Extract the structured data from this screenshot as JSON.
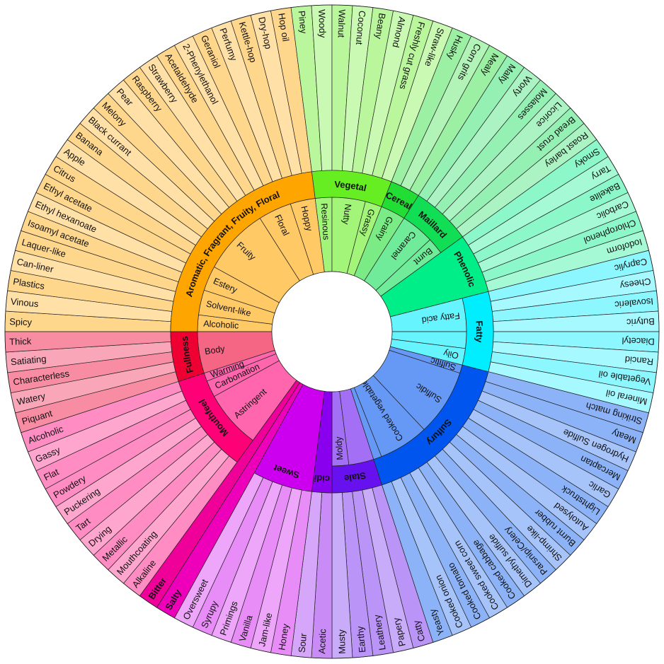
{
  "wheel": {
    "groups": [
      {
        "name": "Aromatic, Fragrant, Fruity, Floral",
        "color": "#ffa500",
        "subgroups": [
          {
            "name": "Alcoholic",
            "descriptors": [
              "Spicy",
              "Vinous"
            ]
          },
          {
            "name": "Solvent-like",
            "descriptors": [
              "Plastics",
              "Can-liner",
              "Laquer-like"
            ]
          },
          {
            "name": "Estery",
            "descriptors": [
              "Isoamyl acetate",
              "Ethyl hexanoate",
              "Ethyl acetate"
            ]
          },
          {
            "name": "Fruity",
            "descriptors": [
              "Citrus",
              "Apple",
              "Banana",
              "Black currant",
              "Melony",
              "Pear",
              "Raspberry",
              "Strawberry"
            ]
          },
          {
            "name": "Floral",
            "descriptors": [
              "Acetaldehyde",
              "2-Phenylethanol",
              "Geraniol",
              "Perfumy"
            ]
          },
          {
            "name": "Hoppy",
            "descriptors": [
              "Kettle-hop",
              "Dry-hop",
              "Hop oil"
            ]
          }
        ]
      },
      {
        "name": "Vegetal",
        "color": "#66ee22",
        "subgroups": [
          {
            "name": "Resinous",
            "descriptors": [
              "Piney",
              "Woody"
            ]
          },
          {
            "name": "Nutty",
            "descriptors": [
              "Walnut",
              "Coconut",
              "Beany",
              "Almond"
            ]
          },
          {
            "name": "Grassy",
            "descriptors": [
              "Freshly cut grass",
              "Straw-like"
            ]
          }
        ]
      },
      {
        "name": "Cereal",
        "color": "#22dd33",
        "subgroups": [
          {
            "name": "Grainy",
            "descriptors": [
              "Husky",
              "Corn grits",
              "Mealy"
            ]
          }
        ]
      },
      {
        "name": "Maillard",
        "color": "#11dd55",
        "subgroups": [
          {
            "name": "Caramel",
            "descriptors": [
              "Malty",
              "Worty",
              "Molasses",
              "Licorice"
            ]
          },
          {
            "name": "Burnt",
            "descriptors": [
              "Bread crust",
              "Roast barley"
            ]
          }
        ]
      },
      {
        "name": "Phenolic",
        "color": "#00ee88",
        "descriptors": [
          "Smoky",
          "Tarry",
          "Bakelite",
          "Carbolic",
          "Chlorophenol",
          "Iodoform"
        ]
      },
      {
        "name": "Fatty",
        "color": "#00eeff",
        "subgroups": [
          {
            "name": "Fatty acid",
            "descriptors": [
              "Caprylic",
              "Cheesy",
              "Isovaleric",
              "Butyric"
            ]
          },
          {
            "descriptors": [
              "Diacetyl",
              "Rancid"
            ]
          },
          {
            "name": "Oily",
            "descriptors": [
              "Vegetable oil",
              "Mineral oil"
            ]
          }
        ]
      },
      {
        "name": "Sulfury",
        "color": "#0055ee",
        "subgroups": [
          {
            "name": "Sulfitic",
            "descriptors": [
              "Striking match"
            ]
          },
          {
            "name": "Sulfidic",
            "descriptors": [
              "Meaty",
              "Hydrogen Sulfide",
              "Mercaptan",
              "Garlic",
              "Lightstruck",
              "Autolysed",
              "Burnt rubber",
              "Shrimp-like"
            ]
          },
          {
            "name": "Cooked vegetable",
            "descriptors": [
              "Parsnip/Celery",
              "Dimethyl sulfide",
              "Cooked cabbage",
              "Cooked sweet corn",
              "Cooked tomato",
              "Cooked onion"
            ]
          },
          {
            "descriptors": [
              "Yeasty"
            ]
          }
        ]
      },
      {
        "name": "Stale",
        "color": "#6611ee",
        "subgroups": [
          {
            "descriptors": [
              "Catty",
              "Papery",
              "Leathery"
            ]
          },
          {
            "name": "Moldy",
            "descriptors": [
              "Earthy",
              "Musty"
            ]
          }
        ]
      },
      {
        "name": "Acidic",
        "color": "#8800ee",
        "descriptors": [
          "Acetic",
          "Sour"
        ]
      },
      {
        "name": "Sweet",
        "color": "#cc00ee",
        "descriptors": [
          "Honey",
          "Jam-like",
          "Vanilla",
          "Primings",
          "Syrupy",
          "Oversweet"
        ]
      },
      {
        "name": "Salty",
        "color": "#ee00bb"
      },
      {
        "name": "Bitter",
        "color": "#ee0099"
      },
      {
        "name": "Mouthfeel",
        "color": "#ff0077",
        "subgroups": [
          {
            "name": "Astringent",
            "descriptors": [
              "Alkaline",
              "Mouthcoating",
              "Metallic",
              "Drying",
              "Tart",
              "Puckering",
              "Powdery"
            ]
          },
          {
            "name": "Carbonation",
            "descriptors": [
              "Flat",
              "Gassy"
            ]
          },
          {
            "name": "Warming",
            "descriptors": [
              "Alcoholic"
            ]
          }
        ]
      },
      {
        "name": "Fullness",
        "color": "#ee0033",
        "subgroups": [
          {
            "name": "Body",
            "descriptors": [
              "Piquant",
              "Watery",
              "Characterless",
              "Satiating",
              "Thick"
            ]
          }
        ]
      }
    ]
  }
}
